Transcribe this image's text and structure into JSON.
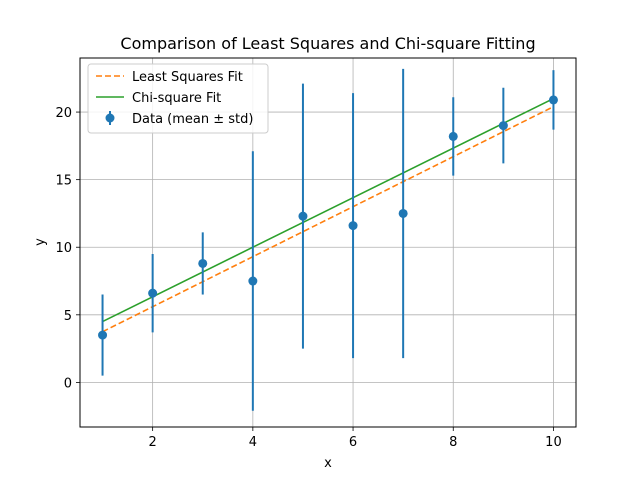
{
  "chart_data": {
    "type": "scatter",
    "title": "Comparison of Least Squares and Chi-square Fitting",
    "xlabel": "x",
    "ylabel": "y",
    "xlim": [
      0.55,
      10.45
    ],
    "ylim": [
      -3.3,
      24.0
    ],
    "xticks": [
      2,
      4,
      6,
      8,
      10
    ],
    "yticks": [
      0,
      5,
      10,
      15,
      20
    ],
    "grid": true,
    "legend_position": "top-left",
    "series": [
      {
        "name": "Least Squares Fit",
        "kind": "line",
        "style": "dashed",
        "color": "#ff7f0e",
        "x": [
          1,
          10
        ],
        "y": [
          3.75,
          20.4
        ]
      },
      {
        "name": "Chi-square Fit",
        "kind": "line",
        "style": "solid",
        "color": "#2ca02c",
        "x": [
          1,
          10
        ],
        "y": [
          4.5,
          21.0
        ]
      },
      {
        "name": "Data (mean ± std)",
        "kind": "errorbar",
        "color": "#1f77b4",
        "x": [
          1,
          2,
          3,
          4,
          5,
          6,
          7,
          8,
          9,
          10
        ],
        "y": [
          3.5,
          6.6,
          8.8,
          7.5,
          12.3,
          11.6,
          12.5,
          18.2,
          19.0,
          20.9
        ],
        "err": [
          3.0,
          2.9,
          2.3,
          9.6,
          9.8,
          9.8,
          10.7,
          2.9,
          2.8,
          2.2
        ]
      }
    ]
  }
}
